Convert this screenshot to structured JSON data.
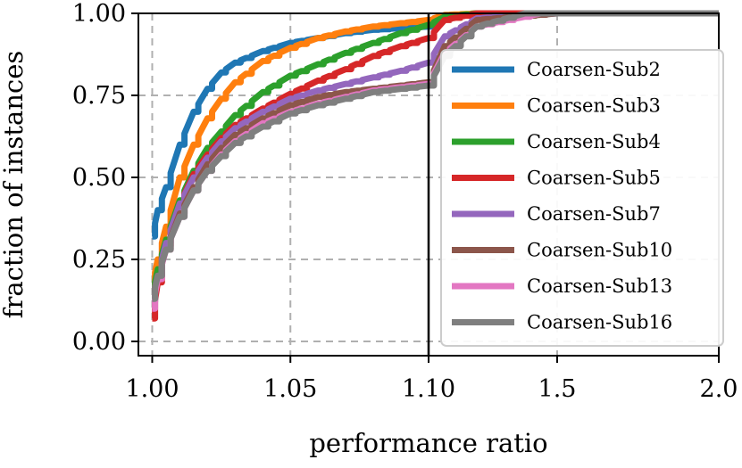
{
  "chart_data": {
    "type": "line",
    "title": "",
    "xlabel": "performance ratio",
    "ylabel": "fraction of instances",
    "ylim": [
      0,
      1
    ],
    "xlim": [
      0.995,
      2.0
    ],
    "x_scale": "piecewise: linear on [0.995, 1.10], compressed on [1.10, 2.0]",
    "x_ticks": [
      "1.00",
      "1.05",
      "1.10",
      "1.5",
      "2.0"
    ],
    "y_ticks": [
      "0.00",
      "0.25",
      "0.50",
      "0.75",
      "1.00"
    ],
    "grid": true,
    "legend_position": "right",
    "series": [
      {
        "name": "Coarsen-Sub2",
        "color": "#1f77b4",
        "x": [
          1.0,
          1.002,
          1.005,
          1.01,
          1.015,
          1.02,
          1.025,
          1.03,
          1.04,
          1.05,
          1.06,
          1.07,
          1.08,
          1.09,
          1.1,
          1.15,
          1.25,
          1.5,
          2.0
        ],
        "y": [
          0.32,
          0.4,
          0.47,
          0.6,
          0.7,
          0.77,
          0.82,
          0.85,
          0.885,
          0.91,
          0.925,
          0.94,
          0.95,
          0.955,
          0.96,
          0.99,
          1.0,
          1.0,
          1.0
        ]
      },
      {
        "name": "Coarsen-Sub3",
        "color": "#ff7f0e",
        "x": [
          1.0,
          1.002,
          1.005,
          1.01,
          1.015,
          1.02,
          1.025,
          1.03,
          1.04,
          1.05,
          1.06,
          1.07,
          1.08,
          1.09,
          1.1,
          1.15,
          1.25,
          1.5,
          2.0
        ],
        "y": [
          0.17,
          0.25,
          0.35,
          0.5,
          0.6,
          0.68,
          0.74,
          0.79,
          0.855,
          0.895,
          0.925,
          0.945,
          0.96,
          0.97,
          0.98,
          0.995,
          1.0,
          1.0,
          1.0
        ]
      },
      {
        "name": "Coarsen-Sub4",
        "color": "#2ca02c",
        "x": [
          1.0,
          1.002,
          1.005,
          1.01,
          1.015,
          1.02,
          1.025,
          1.03,
          1.04,
          1.05,
          1.06,
          1.07,
          1.08,
          1.09,
          1.1,
          1.15,
          1.25,
          1.5,
          2.0
        ],
        "y": [
          0.14,
          0.22,
          0.31,
          0.43,
          0.52,
          0.59,
          0.64,
          0.69,
          0.76,
          0.81,
          0.845,
          0.88,
          0.91,
          0.94,
          0.965,
          0.99,
          1.0,
          1.0,
          1.0
        ]
      },
      {
        "name": "Coarsen-Sub5",
        "color": "#d62728",
        "x": [
          1.0,
          1.002,
          1.005,
          1.01,
          1.015,
          1.02,
          1.025,
          1.03,
          1.04,
          1.05,
          1.06,
          1.07,
          1.08,
          1.09,
          1.1,
          1.15,
          1.25,
          1.5,
          2.0
        ],
        "y": [
          0.07,
          0.18,
          0.29,
          0.42,
          0.51,
          0.57,
          0.62,
          0.66,
          0.71,
          0.755,
          0.795,
          0.83,
          0.87,
          0.9,
          0.925,
          0.98,
          1.0,
          1.0,
          1.0
        ]
      },
      {
        "name": "Coarsen-Sub7",
        "color": "#9467bd",
        "x": [
          1.0,
          1.002,
          1.005,
          1.01,
          1.015,
          1.02,
          1.025,
          1.03,
          1.04,
          1.05,
          1.06,
          1.07,
          1.08,
          1.09,
          1.1,
          1.15,
          1.25,
          1.5,
          1.55,
          2.0
        ],
        "y": [
          0.12,
          0.2,
          0.3,
          0.42,
          0.5,
          0.56,
          0.61,
          0.65,
          0.7,
          0.74,
          0.765,
          0.785,
          0.805,
          0.825,
          0.85,
          0.93,
          0.985,
          1.0,
          1.0,
          1.0
        ]
      },
      {
        "name": "Coarsen-Sub10",
        "color": "#8c564b",
        "x": [
          1.0,
          1.002,
          1.005,
          1.01,
          1.015,
          1.02,
          1.025,
          1.03,
          1.04,
          1.05,
          1.06,
          1.07,
          1.08,
          1.09,
          1.1,
          1.15,
          1.25,
          1.5,
          2.0
        ],
        "y": [
          0.13,
          0.2,
          0.28,
          0.39,
          0.47,
          0.54,
          0.59,
          0.63,
          0.68,
          0.72,
          0.745,
          0.76,
          0.77,
          0.78,
          0.79,
          0.9,
          0.98,
          1.0,
          1.0
        ]
      },
      {
        "name": "Coarsen-Sub13",
        "color": "#e377c2",
        "x": [
          1.0,
          1.002,
          1.005,
          1.01,
          1.015,
          1.02,
          1.025,
          1.03,
          1.04,
          1.05,
          1.06,
          1.07,
          1.08,
          1.09,
          1.1,
          1.15,
          1.25,
          1.4,
          1.45,
          1.5,
          2.0
        ],
        "y": [
          0.1,
          0.19,
          0.28,
          0.38,
          0.46,
          0.52,
          0.57,
          0.61,
          0.665,
          0.7,
          0.725,
          0.745,
          0.765,
          0.775,
          0.785,
          0.88,
          0.96,
          0.99,
          1.0,
          1.0,
          1.0
        ]
      },
      {
        "name": "Coarsen-Sub16",
        "color": "#7f7f7f",
        "x": [
          1.0,
          1.002,
          1.005,
          1.01,
          1.015,
          1.02,
          1.025,
          1.03,
          1.04,
          1.05,
          1.06,
          1.07,
          1.08,
          1.09,
          1.1,
          1.15,
          1.25,
          1.4,
          1.5,
          2.0
        ],
        "y": [
          0.13,
          0.2,
          0.28,
          0.38,
          0.46,
          0.52,
          0.565,
          0.605,
          0.655,
          0.695,
          0.72,
          0.74,
          0.76,
          0.77,
          0.78,
          0.87,
          0.96,
          1.0,
          1.0,
          1.0
        ]
      }
    ]
  }
}
